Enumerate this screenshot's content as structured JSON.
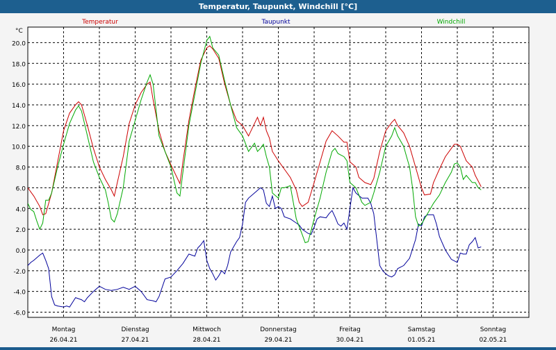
{
  "title": "Temperatur, Taupunkt, Windchill [°C]",
  "chart_data": {
    "type": "line",
    "title": "Temperatur, Taupunkt, Windchill [°C]",
    "ylabel": "°C",
    "ylim": [
      -6.5,
      21.5
    ],
    "yticks": [
      -6.0,
      -4.0,
      -2.0,
      0.0,
      2.0,
      4.0,
      6.0,
      8.0,
      10.0,
      12.0,
      14.0,
      16.0,
      18.0,
      20.0
    ],
    "ytick_labels": [
      "-6.0",
      "-4.0",
      "-2.0",
      "0.0",
      "2.0",
      "4.0",
      "6.0",
      "8.0",
      "10.0",
      "12.0",
      "14.0",
      "16.0",
      "18.0",
      "20.0"
    ],
    "xlim": [
      0,
      168
    ],
    "day_ticks": [
      {
        "day": "Montag",
        "date": "26.04.21"
      },
      {
        "day": "Dienstag",
        "date": "27.04.21"
      },
      {
        "day": "Mittwoch",
        "date": "28.04.21"
      },
      {
        "day": "Donnerstag",
        "date": "29.04.21"
      },
      {
        "day": "Freitag",
        "date": "30.04.21"
      },
      {
        "day": "Samstag",
        "date": "01.05.21"
      },
      {
        "day": "Sonntag",
        "date": "02.05.21"
      }
    ],
    "grid": true,
    "series": [
      {
        "name": "Temperatur",
        "color": "#cc0000",
        "points": [
          [
            0,
            6.0
          ],
          [
            2,
            5.2
          ],
          [
            4,
            4.2
          ],
          [
            5,
            3.4
          ],
          [
            6,
            3.5
          ],
          [
            8,
            5.5
          ],
          [
            10,
            8.5
          ],
          [
            12,
            11.5
          ],
          [
            14,
            13.2
          ],
          [
            16,
            14.0
          ],
          [
            17,
            14.3
          ],
          [
            18,
            14.0
          ],
          [
            20,
            12.0
          ],
          [
            22,
            9.8
          ],
          [
            24,
            8.0
          ],
          [
            26,
            6.8
          ],
          [
            28,
            5.8
          ],
          [
            29,
            5.2
          ],
          [
            30,
            6.5
          ],
          [
            32,
            9.0
          ],
          [
            34,
            12.2
          ],
          [
            36,
            14.0
          ],
          [
            38,
            15.2
          ],
          [
            40,
            16.0
          ],
          [
            41,
            16.2
          ],
          [
            42,
            14.5
          ],
          [
            44,
            11.5
          ],
          [
            46,
            9.5
          ],
          [
            48,
            8.2
          ],
          [
            50,
            7.0
          ],
          [
            51,
            6.4
          ],
          [
            52,
            8.5
          ],
          [
            54,
            12.5
          ],
          [
            56,
            15.5
          ],
          [
            58,
            18.3
          ],
          [
            60,
            19.5
          ],
          [
            61,
            19.7
          ],
          [
            62,
            19.4
          ],
          [
            64,
            18.5
          ],
          [
            66,
            16.0
          ],
          [
            68,
            14.0
          ],
          [
            70,
            12.5
          ],
          [
            72,
            12.0
          ],
          [
            74,
            11.0
          ],
          [
            76,
            12.2
          ],
          [
            77,
            12.8
          ],
          [
            78,
            12.0
          ],
          [
            79,
            12.8
          ],
          [
            80,
            11.5
          ],
          [
            81,
            10.8
          ],
          [
            82,
            9.5
          ],
          [
            84,
            8.6
          ],
          [
            86,
            7.8
          ],
          [
            88,
            7.0
          ],
          [
            90,
            5.8
          ],
          [
            91,
            4.6
          ],
          [
            92,
            4.2
          ],
          [
            94,
            4.6
          ],
          [
            96,
            6.5
          ],
          [
            98,
            8.5
          ],
          [
            100,
            10.5
          ],
          [
            102,
            11.5
          ],
          [
            104,
            11.0
          ],
          [
            106,
            10.4
          ],
          [
            107,
            10.4
          ],
          [
            108,
            8.5
          ],
          [
            110,
            8.0
          ],
          [
            111,
            7.0
          ],
          [
            113,
            6.5
          ],
          [
            115,
            6.3
          ],
          [
            116,
            6.9
          ],
          [
            118,
            9.5
          ],
          [
            120,
            11.5
          ],
          [
            122,
            12.3
          ],
          [
            123,
            12.6
          ],
          [
            124,
            12.0
          ],
          [
            126,
            11.3
          ],
          [
            128,
            10.0
          ],
          [
            130,
            8.0
          ],
          [
            132,
            6.0
          ],
          [
            133,
            5.3
          ],
          [
            135,
            5.4
          ],
          [
            136,
            6.5
          ],
          [
            138,
            7.8
          ],
          [
            140,
            9.0
          ],
          [
            142,
            9.8
          ],
          [
            143,
            10.2
          ],
          [
            144,
            10.2
          ],
          [
            145,
            10.0
          ],
          [
            147,
            8.6
          ],
          [
            149,
            8.0
          ],
          [
            150,
            7.2
          ],
          [
            152,
            6.1
          ]
        ]
      },
      {
        "name": "Taupunkt",
        "color": "#00009a",
        "points": [
          [
            0,
            -1.5
          ],
          [
            1,
            -1.2
          ],
          [
            2,
            -1.0
          ],
          [
            4,
            -0.5
          ],
          [
            5,
            -0.3
          ],
          [
            6,
            -1.0
          ],
          [
            7,
            -1.8
          ],
          [
            8,
            -4.5
          ],
          [
            9,
            -5.3
          ],
          [
            10,
            -5.4
          ],
          [
            12,
            -5.5
          ],
          [
            13,
            -5.4
          ],
          [
            14,
            -5.5
          ],
          [
            16,
            -4.6
          ],
          [
            18,
            -4.8
          ],
          [
            19,
            -5.0
          ],
          [
            20,
            -4.6
          ],
          [
            22,
            -4.0
          ],
          [
            24,
            -3.5
          ],
          [
            26,
            -3.8
          ],
          [
            28,
            -3.9
          ],
          [
            30,
            -3.8
          ],
          [
            32,
            -3.6
          ],
          [
            34,
            -3.8
          ],
          [
            36,
            -3.5
          ],
          [
            38,
            -4.0
          ],
          [
            40,
            -4.8
          ],
          [
            42,
            -4.9
          ],
          [
            43,
            -5.0
          ],
          [
            44,
            -4.5
          ],
          [
            46,
            -2.8
          ],
          [
            48,
            -2.6
          ],
          [
            50,
            -2.0
          ],
          [
            52,
            -1.3
          ],
          [
            54,
            -0.4
          ],
          [
            56,
            -0.6
          ],
          [
            57,
            0.2
          ],
          [
            58,
            0.5
          ],
          [
            59,
            0.9
          ],
          [
            60,
            -1.0
          ],
          [
            61,
            -1.8
          ],
          [
            62,
            -2.3
          ],
          [
            63,
            -2.9
          ],
          [
            64,
            -2.5
          ],
          [
            65,
            -2.0
          ],
          [
            66,
            -2.3
          ],
          [
            67,
            -1.5
          ],
          [
            68,
            -0.2
          ],
          [
            70,
            0.8
          ],
          [
            71,
            1.2
          ],
          [
            72,
            2.5
          ],
          [
            73,
            4.6
          ],
          [
            74,
            5.0
          ],
          [
            76,
            5.5
          ],
          [
            78,
            6.0
          ],
          [
            79,
            5.8
          ],
          [
            80,
            4.5
          ],
          [
            81,
            4.2
          ],
          [
            82,
            5.2
          ],
          [
            83,
            4.0
          ],
          [
            84,
            4.2
          ],
          [
            85,
            4.0
          ],
          [
            86,
            3.2
          ],
          [
            88,
            3.0
          ],
          [
            90,
            2.6
          ],
          [
            91,
            2.4
          ],
          [
            92,
            2.0
          ],
          [
            94,
            1.6
          ],
          [
            95,
            1.5
          ],
          [
            96,
            2.2
          ],
          [
            97,
            3.0
          ],
          [
            98,
            3.2
          ],
          [
            100,
            3.1
          ],
          [
            101,
            3.5
          ],
          [
            102,
            3.8
          ],
          [
            103,
            3.2
          ],
          [
            104,
            2.5
          ],
          [
            105,
            2.3
          ],
          [
            106,
            2.6
          ],
          [
            107,
            2.0
          ],
          [
            108,
            4.0
          ],
          [
            109,
            6.0
          ],
          [
            110,
            5.5
          ],
          [
            112,
            5.0
          ],
          [
            114,
            5.0
          ],
          [
            115,
            4.5
          ],
          [
            116,
            3.5
          ],
          [
            117,
            1.0
          ],
          [
            118,
            -1.5
          ],
          [
            119,
            -2.0
          ],
          [
            120,
            -2.3
          ],
          [
            121,
            -2.5
          ],
          [
            122,
            -2.6
          ],
          [
            123,
            -2.4
          ],
          [
            124,
            -1.8
          ],
          [
            126,
            -1.5
          ],
          [
            128,
            -0.8
          ],
          [
            130,
            1.0
          ],
          [
            131,
            2.5
          ],
          [
            132,
            2.3
          ],
          [
            133,
            3.2
          ],
          [
            134,
            3.4
          ],
          [
            136,
            3.4
          ],
          [
            137,
            2.5
          ],
          [
            138,
            1.3
          ],
          [
            140,
            0.0
          ],
          [
            142,
            -0.9
          ],
          [
            144,
            -1.2
          ],
          [
            145,
            -0.3
          ],
          [
            146,
            -0.4
          ],
          [
            147,
            -0.4
          ],
          [
            148,
            0.5
          ],
          [
            149,
            0.8
          ],
          [
            150,
            1.2
          ],
          [
            151,
            0.2
          ],
          [
            152,
            0.3
          ]
        ]
      },
      {
        "name": "Windchill",
        "color": "#00a800",
        "points": [
          [
            0,
            4.5
          ],
          [
            1,
            3.9
          ],
          [
            2,
            3.7
          ],
          [
            3,
            2.8
          ],
          [
            4,
            2.0
          ],
          [
            5,
            2.6
          ],
          [
            6,
            4.8
          ],
          [
            7,
            4.8
          ],
          [
            8,
            5.5
          ],
          [
            10,
            8.0
          ],
          [
            12,
            10.2
          ],
          [
            14,
            12.2
          ],
          [
            16,
            13.5
          ],
          [
            17,
            13.9
          ],
          [
            18,
            13.4
          ],
          [
            20,
            11.0
          ],
          [
            22,
            8.5
          ],
          [
            24,
            7.0
          ],
          [
            26,
            5.8
          ],
          [
            27,
            4.5
          ],
          [
            28,
            3.0
          ],
          [
            29,
            2.7
          ],
          [
            30,
            3.5
          ],
          [
            32,
            6.0
          ],
          [
            34,
            10.5
          ],
          [
            36,
            12.5
          ],
          [
            38,
            14.5
          ],
          [
            40,
            16.2
          ],
          [
            41,
            16.9
          ],
          [
            42,
            16.0
          ],
          [
            44,
            11.0
          ],
          [
            46,
            9.5
          ],
          [
            48,
            8.0
          ],
          [
            50,
            5.5
          ],
          [
            51,
            5.2
          ],
          [
            52,
            7.5
          ],
          [
            54,
            12.0
          ],
          [
            56,
            15.0
          ],
          [
            58,
            18.0
          ],
          [
            60,
            20.2
          ],
          [
            61,
            20.6
          ],
          [
            62,
            19.5
          ],
          [
            64,
            18.8
          ],
          [
            66,
            16.3
          ],
          [
            68,
            14.0
          ],
          [
            70,
            11.8
          ],
          [
            72,
            11.0
          ],
          [
            74,
            9.5
          ],
          [
            76,
            10.3
          ],
          [
            77,
            9.5
          ],
          [
            78,
            9.8
          ],
          [
            79,
            10.2
          ],
          [
            80,
            9.0
          ],
          [
            81,
            8.0
          ],
          [
            82,
            5.5
          ],
          [
            84,
            5.0
          ],
          [
            85,
            6.0
          ],
          [
            86,
            6.0
          ],
          [
            88,
            6.2
          ],
          [
            90,
            3.0
          ],
          [
            92,
            1.5
          ],
          [
            93,
            0.7
          ],
          [
            94,
            0.8
          ],
          [
            96,
            3.0
          ],
          [
            98,
            5.0
          ],
          [
            100,
            7.5
          ],
          [
            102,
            9.5
          ],
          [
            103,
            9.8
          ],
          [
            104,
            9.3
          ],
          [
            106,
            9.0
          ],
          [
            107,
            8.6
          ],
          [
            108,
            6.5
          ],
          [
            110,
            6.0
          ],
          [
            112,
            4.6
          ],
          [
            113,
            4.3
          ],
          [
            115,
            4.6
          ],
          [
            116,
            5.5
          ],
          [
            118,
            7.5
          ],
          [
            120,
            10.0
          ],
          [
            122,
            11.0
          ],
          [
            123,
            11.8
          ],
          [
            124,
            11.0
          ],
          [
            126,
            10.0
          ],
          [
            127,
            9.0
          ],
          [
            128,
            8.0
          ],
          [
            129,
            6.0
          ],
          [
            130,
            3.2
          ],
          [
            131,
            2.3
          ],
          [
            132,
            2.5
          ],
          [
            134,
            3.5
          ],
          [
            136,
            4.5
          ],
          [
            138,
            5.3
          ],
          [
            140,
            6.5
          ],
          [
            142,
            7.5
          ],
          [
            143,
            8.3
          ],
          [
            144,
            8.4
          ],
          [
            145,
            8.0
          ],
          [
            146,
            6.8
          ],
          [
            147,
            7.2
          ],
          [
            149,
            6.5
          ],
          [
            150,
            6.5
          ],
          [
            151,
            6.0
          ],
          [
            152,
            5.8
          ]
        ]
      }
    ]
  }
}
